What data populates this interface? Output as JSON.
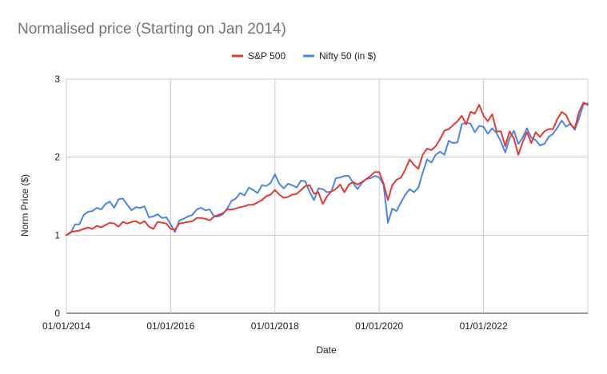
{
  "chart_data": {
    "type": "line",
    "title": "Normalised price (Starting on Jan 2014)",
    "xlabel": "Date",
    "ylabel": "Norm Price ($)",
    "ylim": [
      0,
      3
    ],
    "yticks": [
      "0",
      "1",
      "2",
      "3"
    ],
    "xlim": [
      "2014-01",
      "2024-01"
    ],
    "xticks": [
      {
        "date": "2014-01",
        "label": "01/01/2014"
      },
      {
        "date": "2016-01",
        "label": "01/01/2016"
      },
      {
        "date": "2018-01",
        "label": "01/01/2018"
      },
      {
        "date": "2020-01",
        "label": "01/01/2020"
      },
      {
        "date": "2022-01",
        "label": "01/01/2022"
      }
    ],
    "grid": true,
    "legend_position": "top",
    "series": [
      {
        "name": "S&P 500",
        "color": "#e53935",
        "points": [
          [
            "2014-01",
            1.0
          ],
          [
            "2014-02",
            1.04
          ],
          [
            "2014-03",
            1.05
          ],
          [
            "2014-04",
            1.06
          ],
          [
            "2014-05",
            1.08
          ],
          [
            "2014-06",
            1.1
          ],
          [
            "2014-07",
            1.08
          ],
          [
            "2014-08",
            1.12
          ],
          [
            "2014-09",
            1.1
          ],
          [
            "2014-10",
            1.13
          ],
          [
            "2014-11",
            1.16
          ],
          [
            "2014-12",
            1.15
          ],
          [
            "2015-01",
            1.11
          ],
          [
            "2015-02",
            1.17
          ],
          [
            "2015-03",
            1.15
          ],
          [
            "2015-04",
            1.17
          ],
          [
            "2015-05",
            1.18
          ],
          [
            "2015-06",
            1.15
          ],
          [
            "2015-07",
            1.18
          ],
          [
            "2015-08",
            1.11
          ],
          [
            "2015-09",
            1.08
          ],
          [
            "2015-10",
            1.17
          ],
          [
            "2015-11",
            1.16
          ],
          [
            "2015-12",
            1.15
          ],
          [
            "2016-01",
            1.08
          ],
          [
            "2016-02",
            1.07
          ],
          [
            "2016-03",
            1.15
          ],
          [
            "2016-04",
            1.16
          ],
          [
            "2016-05",
            1.17
          ],
          [
            "2016-06",
            1.18
          ],
          [
            "2016-07",
            1.22
          ],
          [
            "2016-08",
            1.22
          ],
          [
            "2016-09",
            1.21
          ],
          [
            "2016-10",
            1.19
          ],
          [
            "2016-11",
            1.24
          ],
          [
            "2016-12",
            1.26
          ],
          [
            "2017-01",
            1.28
          ],
          [
            "2017-02",
            1.33
          ],
          [
            "2017-03",
            1.33
          ],
          [
            "2017-04",
            1.34
          ],
          [
            "2017-05",
            1.36
          ],
          [
            "2017-06",
            1.37
          ],
          [
            "2017-07",
            1.39
          ],
          [
            "2017-08",
            1.39
          ],
          [
            "2017-09",
            1.42
          ],
          [
            "2017-10",
            1.45
          ],
          [
            "2017-11",
            1.5
          ],
          [
            "2017-12",
            1.52
          ],
          [
            "2018-01",
            1.58
          ],
          [
            "2018-02",
            1.52
          ],
          [
            "2018-03",
            1.48
          ],
          [
            "2018-04",
            1.49
          ],
          [
            "2018-05",
            1.52
          ],
          [
            "2018-06",
            1.53
          ],
          [
            "2018-07",
            1.58
          ],
          [
            "2018-08",
            1.63
          ],
          [
            "2018-09",
            1.64
          ],
          [
            "2018-10",
            1.53
          ],
          [
            "2018-11",
            1.55
          ],
          [
            "2018-12",
            1.4
          ],
          [
            "2019-01",
            1.5
          ],
          [
            "2019-02",
            1.56
          ],
          [
            "2019-03",
            1.59
          ],
          [
            "2019-04",
            1.65
          ],
          [
            "2019-05",
            1.55
          ],
          [
            "2019-06",
            1.65
          ],
          [
            "2019-07",
            1.68
          ],
          [
            "2019-08",
            1.65
          ],
          [
            "2019-09",
            1.68
          ],
          [
            "2019-10",
            1.72
          ],
          [
            "2019-11",
            1.76
          ],
          [
            "2019-12",
            1.81
          ],
          [
            "2020-01",
            1.81
          ],
          [
            "2020-02",
            1.66
          ],
          [
            "2020-03",
            1.45
          ],
          [
            "2020-04",
            1.64
          ],
          [
            "2020-05",
            1.71
          ],
          [
            "2020-06",
            1.74
          ],
          [
            "2020-07",
            1.84
          ],
          [
            "2020-08",
            1.97
          ],
          [
            "2020-09",
            1.9
          ],
          [
            "2020-10",
            1.85
          ],
          [
            "2020-11",
            2.03
          ],
          [
            "2020-12",
            2.11
          ],
          [
            "2021-01",
            2.09
          ],
          [
            "2021-02",
            2.14
          ],
          [
            "2021-03",
            2.23
          ],
          [
            "2021-04",
            2.34
          ],
          [
            "2021-05",
            2.36
          ],
          [
            "2021-06",
            2.41
          ],
          [
            "2021-07",
            2.46
          ],
          [
            "2021-08",
            2.53
          ],
          [
            "2021-09",
            2.42
          ],
          [
            "2021-10",
            2.58
          ],
          [
            "2021-11",
            2.56
          ],
          [
            "2021-12",
            2.67
          ],
          [
            "2022-01",
            2.53
          ],
          [
            "2022-02",
            2.46
          ],
          [
            "2022-03",
            2.55
          ],
          [
            "2022-04",
            2.33
          ],
          [
            "2022-05",
            2.33
          ],
          [
            "2022-06",
            2.14
          ],
          [
            "2022-07",
            2.33
          ],
          [
            "2022-08",
            2.24
          ],
          [
            "2022-09",
            2.03
          ],
          [
            "2022-10",
            2.19
          ],
          [
            "2022-11",
            2.32
          ],
          [
            "2022-12",
            2.18
          ],
          [
            "2023-01",
            2.32
          ],
          [
            "2023-02",
            2.26
          ],
          [
            "2023-03",
            2.33
          ],
          [
            "2023-04",
            2.36
          ],
          [
            "2023-05",
            2.36
          ],
          [
            "2023-06",
            2.49
          ],
          [
            "2023-07",
            2.58
          ],
          [
            "2023-08",
            2.54
          ],
          [
            "2023-09",
            2.42
          ],
          [
            "2023-10",
            2.37
          ],
          [
            "2023-11",
            2.58
          ],
          [
            "2023-12",
            2.7
          ],
          [
            "2024-01",
            2.67
          ]
        ]
      },
      {
        "name": "Nifty 50 (in $)",
        "color": "#4a86e8",
        "points": [
          [
            "2014-01",
            1.0
          ],
          [
            "2014-02",
            1.03
          ],
          [
            "2014-03",
            1.14
          ],
          [
            "2014-04",
            1.14
          ],
          [
            "2014-05",
            1.26
          ],
          [
            "2014-06",
            1.3
          ],
          [
            "2014-07",
            1.31
          ],
          [
            "2014-08",
            1.35
          ],
          [
            "2014-09",
            1.33
          ],
          [
            "2014-10",
            1.4
          ],
          [
            "2014-11",
            1.43
          ],
          [
            "2014-12",
            1.35
          ],
          [
            "2015-01",
            1.46
          ],
          [
            "2015-02",
            1.47
          ],
          [
            "2015-03",
            1.39
          ],
          [
            "2015-04",
            1.32
          ],
          [
            "2015-05",
            1.36
          ],
          [
            "2015-06",
            1.35
          ],
          [
            "2015-07",
            1.37
          ],
          [
            "2015-08",
            1.23
          ],
          [
            "2015-09",
            1.24
          ],
          [
            "2015-10",
            1.27
          ],
          [
            "2015-11",
            1.22
          ],
          [
            "2015-12",
            1.23
          ],
          [
            "2016-01",
            1.14
          ],
          [
            "2016-02",
            1.04
          ],
          [
            "2016-03",
            1.19
          ],
          [
            "2016-04",
            1.21
          ],
          [
            "2016-05",
            1.24
          ],
          [
            "2016-06",
            1.26
          ],
          [
            "2016-07",
            1.33
          ],
          [
            "2016-08",
            1.35
          ],
          [
            "2016-09",
            1.32
          ],
          [
            "2016-10",
            1.33
          ],
          [
            "2016-11",
            1.24
          ],
          [
            "2016-12",
            1.24
          ],
          [
            "2017-01",
            1.27
          ],
          [
            "2017-02",
            1.34
          ],
          [
            "2017-03",
            1.44
          ],
          [
            "2017-04",
            1.47
          ],
          [
            "2017-05",
            1.54
          ],
          [
            "2017-06",
            1.51
          ],
          [
            "2017-07",
            1.61
          ],
          [
            "2017-08",
            1.58
          ],
          [
            "2017-09",
            1.54
          ],
          [
            "2017-10",
            1.64
          ],
          [
            "2017-11",
            1.63
          ],
          [
            "2017-12",
            1.67
          ],
          [
            "2018-01",
            1.78
          ],
          [
            "2018-02",
            1.66
          ],
          [
            "2018-03",
            1.6
          ],
          [
            "2018-04",
            1.66
          ],
          [
            "2018-05",
            1.64
          ],
          [
            "2018-06",
            1.61
          ],
          [
            "2018-07",
            1.7
          ],
          [
            "2018-08",
            1.69
          ],
          [
            "2018-09",
            1.55
          ],
          [
            "2018-10",
            1.45
          ],
          [
            "2018-11",
            1.6
          ],
          [
            "2018-12",
            1.59
          ],
          [
            "2019-01",
            1.55
          ],
          [
            "2019-02",
            1.56
          ],
          [
            "2019-03",
            1.73
          ],
          [
            "2019-04",
            1.74
          ],
          [
            "2019-05",
            1.76
          ],
          [
            "2019-06",
            1.76
          ],
          [
            "2019-07",
            1.67
          ],
          [
            "2019-08",
            1.59
          ],
          [
            "2019-09",
            1.67
          ],
          [
            "2019-10",
            1.72
          ],
          [
            "2019-11",
            1.73
          ],
          [
            "2019-12",
            1.76
          ],
          [
            "2020-01",
            1.74
          ],
          [
            "2020-02",
            1.65
          ],
          [
            "2020-03",
            1.16
          ],
          [
            "2020-04",
            1.34
          ],
          [
            "2020-05",
            1.31
          ],
          [
            "2020-06",
            1.42
          ],
          [
            "2020-07",
            1.52
          ],
          [
            "2020-08",
            1.59
          ],
          [
            "2020-09",
            1.55
          ],
          [
            "2020-10",
            1.61
          ],
          [
            "2020-11",
            1.8
          ],
          [
            "2020-12",
            1.97
          ],
          [
            "2021-01",
            1.93
          ],
          [
            "2021-02",
            2.03
          ],
          [
            "2021-03",
            2.07
          ],
          [
            "2021-04",
            2.03
          ],
          [
            "2021-05",
            2.21
          ],
          [
            "2021-06",
            2.18
          ],
          [
            "2021-07",
            2.19
          ],
          [
            "2021-08",
            2.42
          ],
          [
            "2021-09",
            2.44
          ],
          [
            "2021-10",
            2.43
          ],
          [
            "2021-11",
            2.32
          ],
          [
            "2021-12",
            2.4
          ],
          [
            "2022-01",
            2.39
          ],
          [
            "2022-02",
            2.3
          ],
          [
            "2022-03",
            2.37
          ],
          [
            "2022-04",
            2.31
          ],
          [
            "2022-05",
            2.2
          ],
          [
            "2022-06",
            2.06
          ],
          [
            "2022-07",
            2.24
          ],
          [
            "2022-08",
            2.34
          ],
          [
            "2022-09",
            2.17
          ],
          [
            "2022-10",
            2.25
          ],
          [
            "2022-11",
            2.37
          ],
          [
            "2022-12",
            2.25
          ],
          [
            "2023-01",
            2.22
          ],
          [
            "2023-02",
            2.15
          ],
          [
            "2023-03",
            2.17
          ],
          [
            "2023-04",
            2.26
          ],
          [
            "2023-05",
            2.3
          ],
          [
            "2023-06",
            2.38
          ],
          [
            "2023-07",
            2.47
          ],
          [
            "2023-08",
            2.39
          ],
          [
            "2023-09",
            2.43
          ],
          [
            "2023-10",
            2.35
          ],
          [
            "2023-11",
            2.5
          ],
          [
            "2023-12",
            2.68
          ],
          [
            "2024-01",
            2.69
          ]
        ]
      }
    ]
  }
}
